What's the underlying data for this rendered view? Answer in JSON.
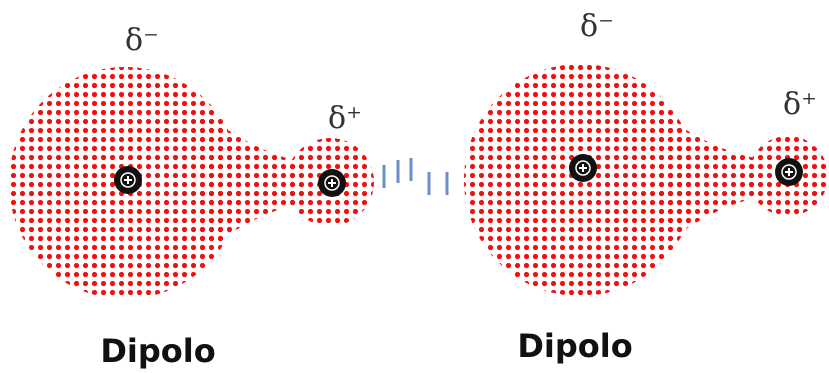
{
  "dipoles": [
    {
      "charge_negative": "δ⁻",
      "charge_positive": "δ⁺",
      "label": "Dipolo"
    },
    {
      "charge_negative": "δ⁻",
      "charge_positive": "δ⁺",
      "label": "Dipolo"
    }
  ]
}
